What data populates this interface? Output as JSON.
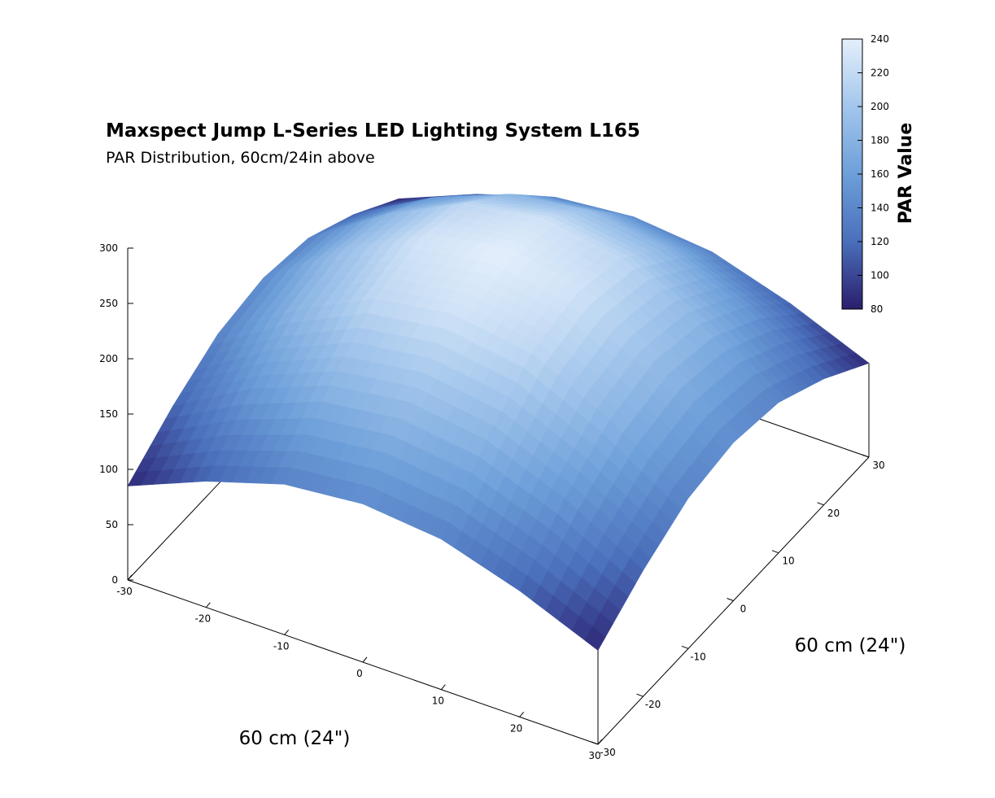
{
  "chart_data": {
    "type": "surface",
    "title": "Maxspect Jump L-Series LED Lighting System L165",
    "subtitle": "PAR Distribution, 60cm/24in above",
    "x_label": "60 cm (24\")",
    "y_label": "60 cm (24\")",
    "colorbar_label": "PAR Value",
    "x": [
      -30,
      -20,
      -10,
      0,
      10,
      20,
      30
    ],
    "y": [
      -30,
      -20,
      -10,
      0,
      10,
      20,
      30
    ],
    "z": [
      [
        85,
        114,
        136,
        143,
        136,
        114,
        85
      ],
      [
        114,
        154,
        182,
        192,
        182,
        154,
        114
      ],
      [
        136,
        182,
        217,
        228,
        217,
        182,
        136
      ],
      [
        143,
        192,
        228,
        240,
        228,
        192,
        143
      ],
      [
        136,
        182,
        217,
        228,
        217,
        182,
        136
      ],
      [
        114,
        154,
        182,
        192,
        182,
        154,
        114
      ],
      [
        85,
        114,
        136,
        143,
        136,
        114,
        85
      ]
    ],
    "xlim": [
      -30,
      30
    ],
    "xticks": [
      -30,
      -20,
      -10,
      0,
      10,
      20,
      30
    ],
    "ylim": [
      -30,
      30
    ],
    "yticks": [
      -30,
      -20,
      -10,
      0,
      10,
      20,
      30
    ],
    "zlim": [
      0,
      300
    ],
    "zticks": [
      0,
      50,
      100,
      150,
      200,
      250,
      300
    ],
    "clim": [
      80,
      240
    ],
    "cticks": [
      80,
      100,
      120,
      140,
      160,
      180,
      200,
      220,
      240
    ],
    "colormap": [
      "#2a1e6c",
      "#4a6fbb",
      "#6d9fd9",
      "#a3c6ec",
      "#e4effb"
    ]
  }
}
